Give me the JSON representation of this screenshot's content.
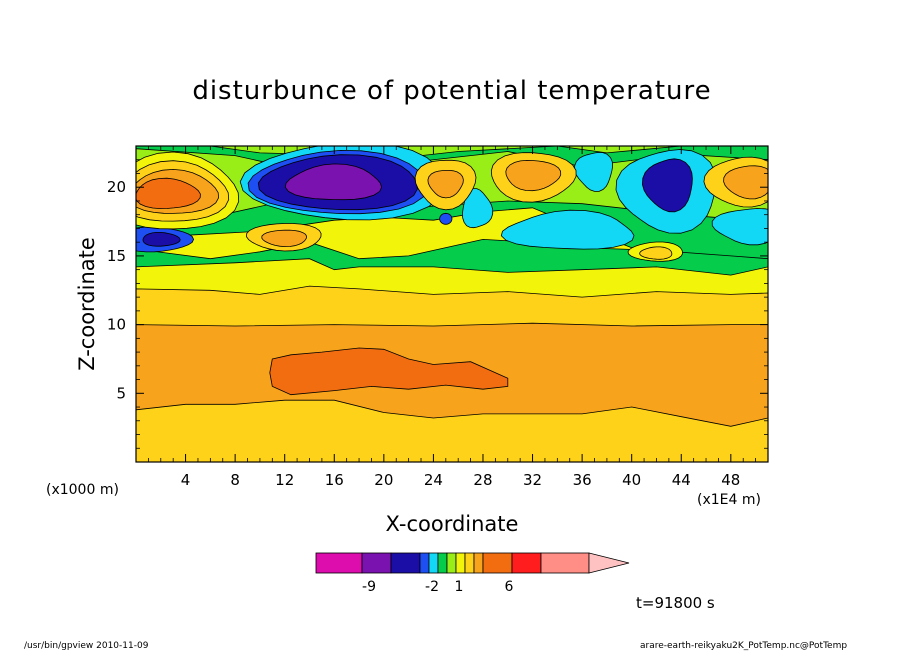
{
  "chart_data": {
    "type": "heatmap",
    "title": "disturbunce of potential temperature",
    "xlabel": "X-coordinate",
    "ylabel": "Z-coordinate",
    "x_unit_left": "(x1000 m)",
    "x_unit_right": "(x1E4 m)",
    "xlim": [
      0,
      51
    ],
    "ylim": [
      0,
      23
    ],
    "x_ticks": [
      4,
      8,
      12,
      16,
      20,
      24,
      28,
      32,
      36,
      40,
      44,
      48
    ],
    "y_ticks": [
      5,
      10,
      15,
      20
    ],
    "grid": false,
    "colorbar": {
      "colors": [
        "#dd0cac",
        "#7a12b0",
        "#1a0ea6",
        "#1d4ff2",
        "#12d8f5",
        "#05cc4a",
        "#9aee17",
        "#f2f40a",
        "#ffd21a",
        "#f7a31b",
        "#f26d10",
        "#ff1d1d",
        "#ff8f86",
        "#ffc2c2"
      ],
      "tick_labels": [
        "-9",
        "-2",
        "1",
        "6"
      ]
    },
    "time_label": "t=91800 s",
    "regions_note": "",
    "features": [
      {
        "level": "low",
        "x": 16,
        "z": 20,
        "value": -9
      },
      {
        "level": "low",
        "x": 43,
        "z": 20.3,
        "value": -6
      },
      {
        "level": "low",
        "x": 1.5,
        "z": 16.2,
        "value": -5
      },
      {
        "level": "high",
        "x": 3,
        "z": 19.5,
        "value": 4
      },
      {
        "level": "high",
        "x": 20,
        "z": 6.5,
        "value": 4
      },
      {
        "level": "high",
        "x": 32,
        "z": 21,
        "value": 3
      }
    ]
  },
  "footer": {
    "left": "/usr/bin/gpview  2010-11-09",
    "right": "arare-earth-reikyaku2K_PotTemp.nc@PotTemp"
  }
}
